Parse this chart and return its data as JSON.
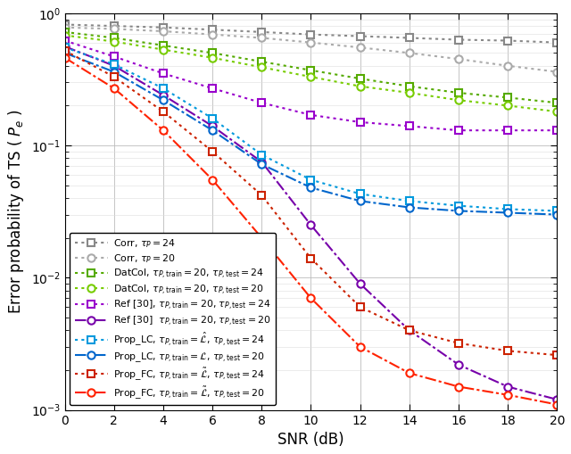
{
  "snr": [
    0,
    2,
    4,
    6,
    8,
    10,
    12,
    14,
    16,
    18,
    20
  ],
  "series": [
    {
      "label": "Corr, $\\tau_P = 24$",
      "color": "#888888",
      "linestyle": "dotted",
      "marker": "s",
      "markersize": 6,
      "markerfacecolor": "white",
      "markeredgecolor": "#888888",
      "linewidth": 1.5,
      "data": [
        0.82,
        0.8,
        0.78,
        0.75,
        0.72,
        0.69,
        0.67,
        0.65,
        0.63,
        0.62,
        0.6
      ]
    },
    {
      "label": "Corr, $\\tau_P = 20$",
      "color": "#aaaaaa",
      "linestyle": "dotted",
      "marker": "o",
      "markersize": 6,
      "markerfacecolor": "white",
      "markeredgecolor": "#aaaaaa",
      "linewidth": 1.5,
      "data": [
        0.78,
        0.76,
        0.73,
        0.69,
        0.65,
        0.6,
        0.55,
        0.5,
        0.45,
        0.4,
        0.36
      ]
    },
    {
      "label": "DatCol, $\\tau_{P,\\mathrm{train}} = 20$, $\\tau_{P,\\mathrm{test}} = 24$",
      "color": "#55aa00",
      "linestyle": "dotted",
      "marker": "s",
      "markersize": 6,
      "markerfacecolor": "white",
      "markeredgecolor": "#55aa00",
      "linewidth": 1.5,
      "data": [
        0.72,
        0.65,
        0.57,
        0.5,
        0.43,
        0.37,
        0.32,
        0.28,
        0.25,
        0.23,
        0.21
      ]
    },
    {
      "label": "DatCol, $\\tau_{P,\\mathrm{train}} = 20$, $\\tau_{P,\\mathrm{test}} = 20$",
      "color": "#77cc00",
      "linestyle": "dotted",
      "marker": "o",
      "markersize": 6,
      "markerfacecolor": "white",
      "markeredgecolor": "#77cc00",
      "linewidth": 1.5,
      "data": [
        0.68,
        0.61,
        0.53,
        0.46,
        0.39,
        0.33,
        0.28,
        0.25,
        0.22,
        0.2,
        0.18
      ]
    },
    {
      "label": "Ref [30], $\\tau_{P,\\mathrm{train}} = 20$, $\\tau_{P,\\mathrm{test}} = 24$",
      "color": "#9900cc",
      "linestyle": "dotted",
      "marker": "s",
      "markersize": 6,
      "markerfacecolor": "white",
      "markeredgecolor": "#9900cc",
      "linewidth": 1.5,
      "data": [
        0.62,
        0.47,
        0.35,
        0.27,
        0.21,
        0.17,
        0.15,
        0.14,
        0.13,
        0.13,
        0.13
      ]
    },
    {
      "label": "Ref [30]  $\\tau_{P,\\mathrm{train}} = 20$, $\\tau_{P,\\mathrm{test}} = 20$",
      "color": "#7700aa",
      "linestyle": "dashdot",
      "marker": "o",
      "markersize": 6,
      "markerfacecolor": "white",
      "markeredgecolor": "#7700aa",
      "linewidth": 1.5,
      "data": [
        0.56,
        0.4,
        0.24,
        0.14,
        0.075,
        0.025,
        0.009,
        0.004,
        0.0022,
        0.0015,
        0.0012
      ]
    },
    {
      "label": "Prop_LC, $\\tau_{P,\\mathrm{train}} = \\hat{\\mathcal{L}}$, $\\tau_{P,\\mathrm{test}} = 24$",
      "color": "#0099dd",
      "linestyle": "dotted",
      "marker": "s",
      "markersize": 6,
      "markerfacecolor": "white",
      "markeredgecolor": "#0099dd",
      "linewidth": 1.5,
      "data": [
        0.55,
        0.41,
        0.27,
        0.16,
        0.085,
        0.055,
        0.043,
        0.038,
        0.035,
        0.033,
        0.032
      ]
    },
    {
      "label": "Prop_LC, $\\tau_{P,\\mathrm{train}} = \\mathcal{L}$, $\\tau_{P,\\mathrm{test}} = 20$",
      "color": "#0066cc",
      "linestyle": "dashdot",
      "marker": "o",
      "markersize": 6,
      "markerfacecolor": "white",
      "markeredgecolor": "#0066cc",
      "linewidth": 1.5,
      "data": [
        0.5,
        0.36,
        0.22,
        0.13,
        0.072,
        0.048,
        0.038,
        0.034,
        0.032,
        0.031,
        0.03
      ]
    },
    {
      "label": "Prop_FC, $\\tau_{P,\\mathrm{train}} = \\tilde{\\mathcal{L}}$, $\\tau_{P,\\mathrm{test}} = 24$",
      "color": "#cc2200",
      "linestyle": "dotted",
      "marker": "s",
      "markersize": 6,
      "markerfacecolor": "white",
      "markeredgecolor": "#cc2200",
      "linewidth": 1.5,
      "data": [
        0.52,
        0.33,
        0.18,
        0.09,
        0.042,
        0.014,
        0.006,
        0.004,
        0.0032,
        0.0028,
        0.0026
      ]
    },
    {
      "label": "Prop_FC, $\\tau_{P,\\mathrm{train}} = \\tilde{\\mathcal{L}}$, $\\tau_{P,\\mathrm{test}} = 20$",
      "color": "#ff2200",
      "linestyle": "dashdot",
      "marker": "o",
      "markersize": 6,
      "markerfacecolor": "white",
      "markeredgecolor": "#ff2200",
      "linewidth": 1.5,
      "data": [
        0.46,
        0.27,
        0.13,
        0.055,
        0.02,
        0.007,
        0.003,
        0.0019,
        0.0015,
        0.0013,
        0.0011
      ]
    }
  ],
  "xlabel": "SNR (dB)",
  "ylabel": "Error probability of TS ( $P_e$ )",
  "xlim": [
    0,
    20
  ],
  "ylim": [
    0.001,
    1.0
  ],
  "xticks": [
    0,
    2,
    4,
    6,
    8,
    10,
    12,
    14,
    16,
    18,
    20
  ],
  "legend_loc": "lower left",
  "legend_fontsize": 7.8,
  "grid": true
}
